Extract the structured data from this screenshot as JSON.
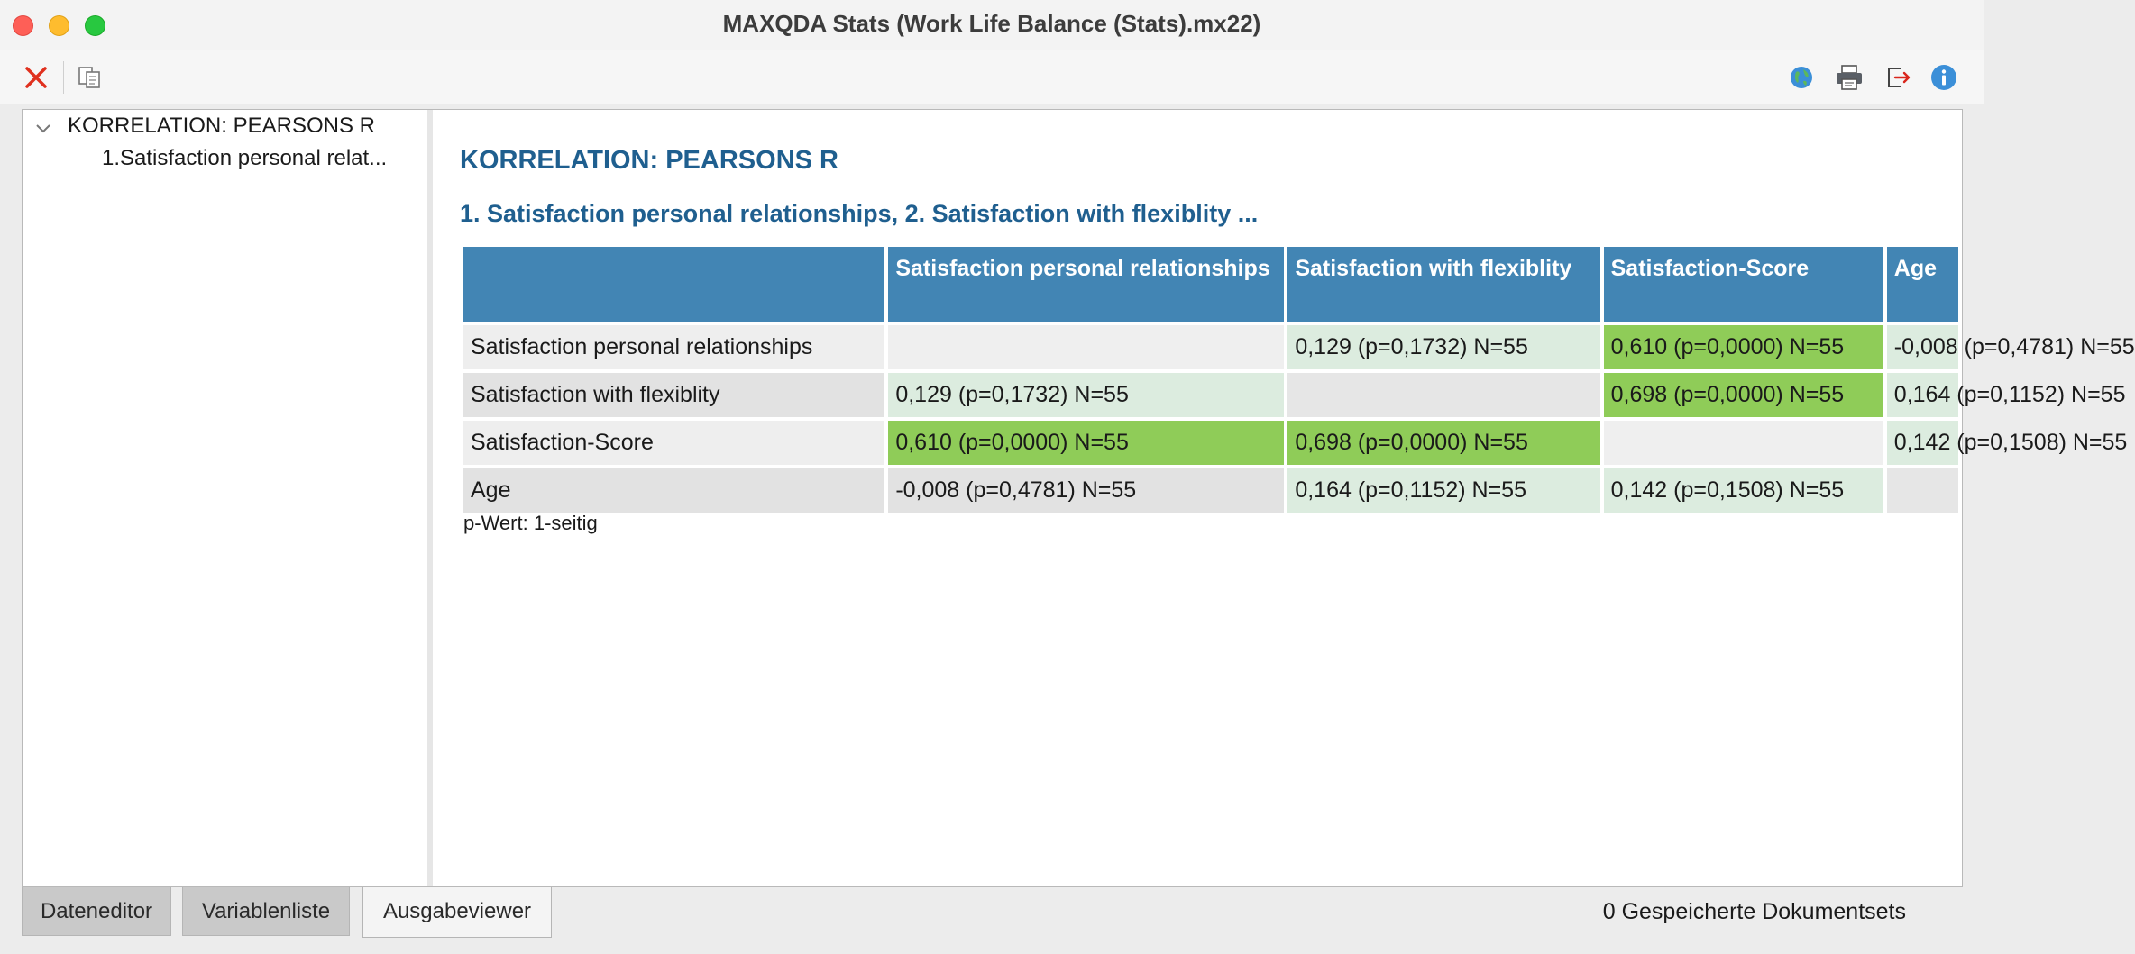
{
  "window": {
    "title": "MAXQDA Stats (Work Life Balance (Stats).mx22)"
  },
  "toolbar": {
    "left_icons": [
      "close-icon",
      "copy-icon"
    ],
    "right_icons": [
      "globe-icon",
      "print-icon",
      "export-icon",
      "info-icon"
    ]
  },
  "tree": {
    "root": "KORRELATION: PEARSONS R",
    "child": "1.Satisfaction personal relat..."
  },
  "output": {
    "heading": "KORRELATION: PEARSONS R",
    "subheading": "1. Satisfaction personal relationships, 2. Satisfaction with flexiblity ...",
    "columns": [
      "Satisfaction personal relationships",
      "Satisfaction with flexiblity",
      "Satisfaction-Score",
      "Age"
    ],
    "rows": [
      {
        "label": "Satisfaction personal relationships",
        "cells": [
          "",
          "0,129 (p=0,1732) N=55",
          "0,610 (p=0,0000) N=55",
          "-0,008 (p=0,4781) N=55"
        ]
      },
      {
        "label": "Satisfaction with flexiblity",
        "cells": [
          "0,129 (p=0,1732) N=55",
          "",
          "0,698 (p=0,0000) N=55",
          "0,164 (p=0,1152) N=55"
        ]
      },
      {
        "label": "Satisfaction-Score",
        "cells": [
          "0,610 (p=0,0000) N=55",
          "0,698 (p=0,0000) N=55",
          "",
          "0,142 (p=0,1508) N=55"
        ]
      },
      {
        "label": "Age",
        "cells": [
          "-0,008 (p=0,4781) N=55",
          "0,164 (p=0,1152) N=55",
          "0,142 (p=0,1508) N=55",
          ""
        ]
      }
    ],
    "note": "p-Wert: 1-seitig"
  },
  "tabs": [
    "Dateneditor",
    "Variablenliste",
    "Ausgabeviewer"
  ],
  "status": {
    "text": "0 Gespeicherte Dokumentsets"
  },
  "colors": {
    "header_blue": "#4285b4",
    "title_blue": "#1f5f8f",
    "strong_green": "#8fcc58",
    "light_green": "#dcecdf"
  }
}
